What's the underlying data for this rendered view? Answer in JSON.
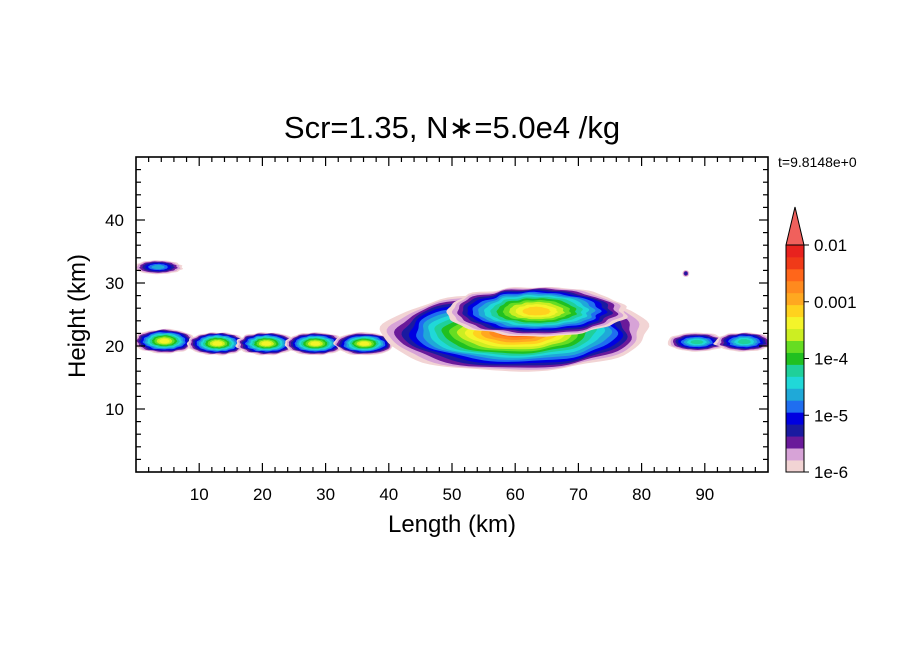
{
  "chart_data": {
    "type": "heatmap",
    "title": "Scr=1.35, N∗=5.0e4 /kg",
    "timestamp": "t=9.8148e+0",
    "xlabel": "Length  (km)",
    "ylabel": "Height  (km)",
    "xlim": [
      0,
      100
    ],
    "ylim": [
      0,
      50
    ],
    "x_ticks": [
      10,
      20,
      30,
      40,
      50,
      60,
      70,
      80,
      90
    ],
    "y_ticks": [
      10,
      20,
      30,
      40
    ],
    "colorbar": {
      "tick_labels": [
        "0.01",
        "0.001",
        "1e-4",
        "1e-5",
        "1e-6"
      ],
      "tick_exponents": [
        -2,
        -3,
        -4,
        -5,
        -6
      ],
      "range_log10": [
        -6,
        -2
      ],
      "extend": "max",
      "colors": [
        "#f2d4d4",
        "#d7a3d7",
        "#6a1a9a",
        "#1a1aa0",
        "#0000e0",
        "#1f6ef0",
        "#1fa9d8",
        "#20d8d8",
        "#1fd09a",
        "#20c020",
        "#66dd22",
        "#ccee22",
        "#f4f42a",
        "#ffd21e",
        "#ffa820",
        "#ff8a1e",
        "#ff661a",
        "#f03a18",
        "#e8221e",
        "#f0605c"
      ]
    },
    "regions": [
      {
        "x": [
          0,
          9
        ],
        "y": [
          19,
          22.5
        ],
        "peak_log10": -3.4,
        "description": "low-left layer"
      },
      {
        "x": [
          0,
          7
        ],
        "y": [
          31.5,
          33.5
        ],
        "peak_log10": -4.8
      },
      {
        "x": [
          9,
          40
        ],
        "y": [
          19,
          22
        ],
        "peak_log10": -3.5
      },
      {
        "x": [
          39,
          81
        ],
        "y": [
          17,
          30
        ],
        "peak_log10": -2.6,
        "description": "main cloud"
      },
      {
        "x": [
          85,
          100
        ],
        "y": [
          19.5,
          22
        ],
        "peak_log10": -4.3
      },
      {
        "x": [
          86.5,
          87.5
        ],
        "y": [
          31,
          32
        ],
        "peak_log10": -5.3
      }
    ]
  }
}
